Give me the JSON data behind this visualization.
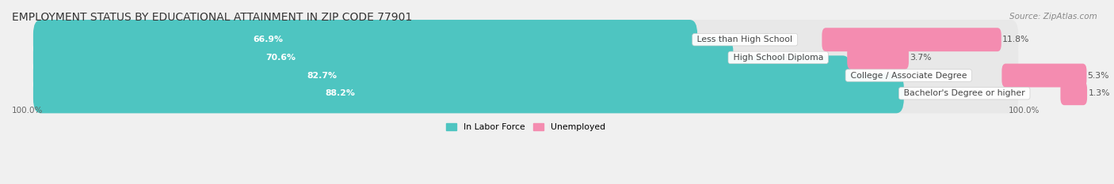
{
  "title": "EMPLOYMENT STATUS BY EDUCATIONAL ATTAINMENT IN ZIP CODE 77901",
  "source": "Source: ZipAtlas.com",
  "categories": [
    "Less than High School",
    "High School Diploma",
    "College / Associate Degree",
    "Bachelor's Degree or higher"
  ],
  "in_labor_force": [
    66.9,
    70.6,
    82.7,
    88.2
  ],
  "unemployed": [
    11.8,
    3.7,
    5.3,
    1.3
  ],
  "bar_color_labor": "#4ec5c1",
  "bar_color_unemployed": "#f48cb0",
  "background_color": "#f0f0f0",
  "bar_bg_color": "#e4e4e4",
  "row_bg_color": "#e8e8e8",
  "axis_max": 100.0,
  "legend_labor": "In Labor Force",
  "legend_unemployed": "Unemployed",
  "title_fontsize": 9.5,
  "label_fontsize": 7.8,
  "tick_fontsize": 7.5,
  "source_fontsize": 7.5,
  "bar_height": 0.62,
  "bottom_left_label": "100.0%",
  "bottom_right_label": "100.0%"
}
